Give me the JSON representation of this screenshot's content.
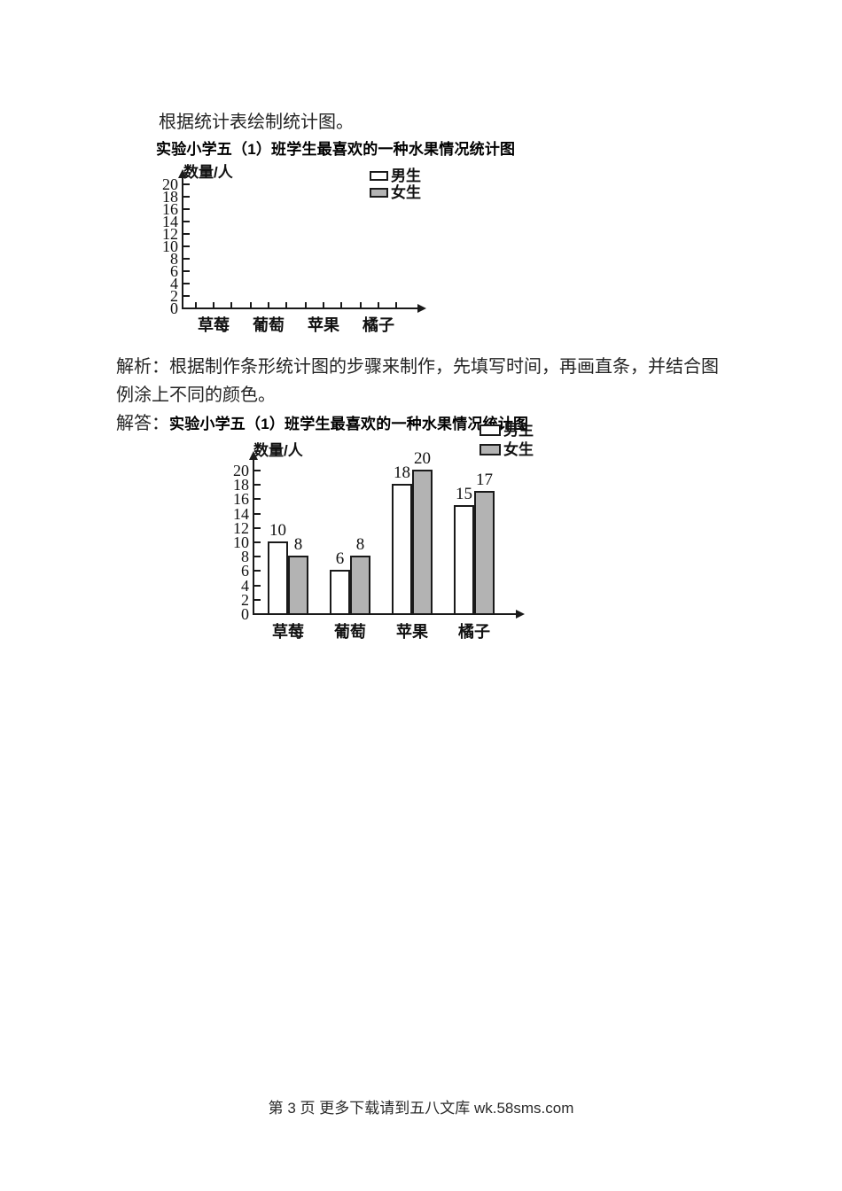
{
  "texts": {
    "instruction": "根据统计表绘制统计图。",
    "analysis": "解析：根据制作条形统计图的步骤来制作，先填写时间，再画直条，并结合图例涂上不同的颜色。",
    "answer_label": "解答：",
    "footer": "第 3 页 更多下载请到五八文库 wk.58sms.com"
  },
  "colors": {
    "axis": "#1a1a1a",
    "male_fill": "#ffffff",
    "female_fill": "#b3b3b3",
    "text": "#111111"
  },
  "chart_data": [
    {
      "type": "bar",
      "title": "实验小学五（1）班学生最喜欢的一种水果情况统计图",
      "ylabel": "数量/人",
      "xlabel": "",
      "categories": [
        "草莓",
        "葡萄",
        "苹果",
        "橘子"
      ],
      "series": [
        {
          "name": "男生",
          "fill": "#ffffff",
          "values": []
        },
        {
          "name": "女生",
          "fill": "#b3b3b3",
          "values": []
        }
      ],
      "ylim": [
        0,
        20
      ],
      "ytick_step": 2,
      "yticks": [
        0,
        2,
        4,
        6,
        8,
        10,
        12,
        14,
        16,
        18,
        20
      ],
      "legend_position": "top-right",
      "grid": false,
      "empty": true
    },
    {
      "type": "bar",
      "title": "实验小学五（1）班学生最喜欢的一种水果情况统计图",
      "ylabel": "数量/人",
      "xlabel": "",
      "categories": [
        "草莓",
        "葡萄",
        "苹果",
        "橘子"
      ],
      "series": [
        {
          "name": "男生",
          "fill": "#ffffff",
          "values": [
            10,
            6,
            18,
            15
          ]
        },
        {
          "name": "女生",
          "fill": "#b3b3b3",
          "values": [
            8,
            8,
            20,
            17
          ]
        }
      ],
      "ylim": [
        0,
        20
      ],
      "ytick_step": 2,
      "yticks": [
        0,
        2,
        4,
        6,
        8,
        10,
        12,
        14,
        16,
        18,
        20
      ],
      "legend_position": "top-right",
      "grid": false,
      "bar_value_labels": true,
      "empty": false
    }
  ]
}
